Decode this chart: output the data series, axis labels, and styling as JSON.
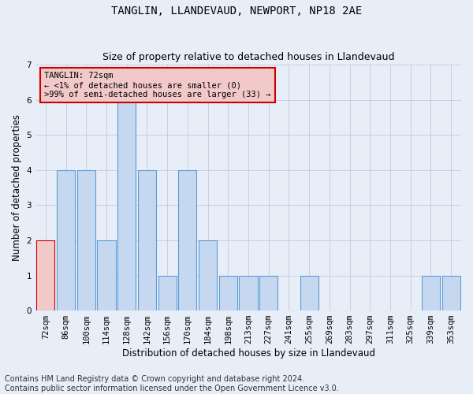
{
  "title1": "TANGLIN, LLANDEVAUD, NEWPORT, NP18 2AE",
  "title2": "Size of property relative to detached houses in Llandevaud",
  "xlabel": "Distribution of detached houses by size in Llandevaud",
  "ylabel": "Number of detached properties",
  "categories": [
    "72sqm",
    "86sqm",
    "100sqm",
    "114sqm",
    "128sqm",
    "142sqm",
    "156sqm",
    "170sqm",
    "184sqm",
    "198sqm",
    "213sqm",
    "227sqm",
    "241sqm",
    "255sqm",
    "269sqm",
    "283sqm",
    "297sqm",
    "311sqm",
    "325sqm",
    "339sqm",
    "353sqm"
  ],
  "values": [
    2,
    4,
    4,
    2,
    6,
    4,
    1,
    4,
    2,
    1,
    1,
    1,
    0,
    1,
    0,
    0,
    0,
    0,
    0,
    1,
    1
  ],
  "bar_color": "#c5d8f0",
  "bar_edge_color": "#5b9bd5",
  "highlight_index": 0,
  "highlight_color": "#f2c9c9",
  "highlight_edge_color": "#cc0000",
  "annotation_title": "TANGLIN: 72sqm",
  "annotation_line1": "← <1% of detached houses are smaller (0)",
  "annotation_line2": ">99% of semi-detached houses are larger (33) →",
  "annotation_box_color": "#f2c9c9",
  "annotation_box_edge_color": "#cc0000",
  "ylim": [
    0,
    7
  ],
  "yticks": [
    0,
    1,
    2,
    3,
    4,
    5,
    6,
    7
  ],
  "bg_color": "#e8eef8",
  "footer1": "Contains HM Land Registry data © Crown copyright and database right 2024.",
  "footer2": "Contains public sector information licensed under the Open Government Licence v3.0.",
  "title1_fontsize": 10,
  "title2_fontsize": 9,
  "axis_label_fontsize": 8.5,
  "tick_fontsize": 7.5,
  "footer_fontsize": 7
}
